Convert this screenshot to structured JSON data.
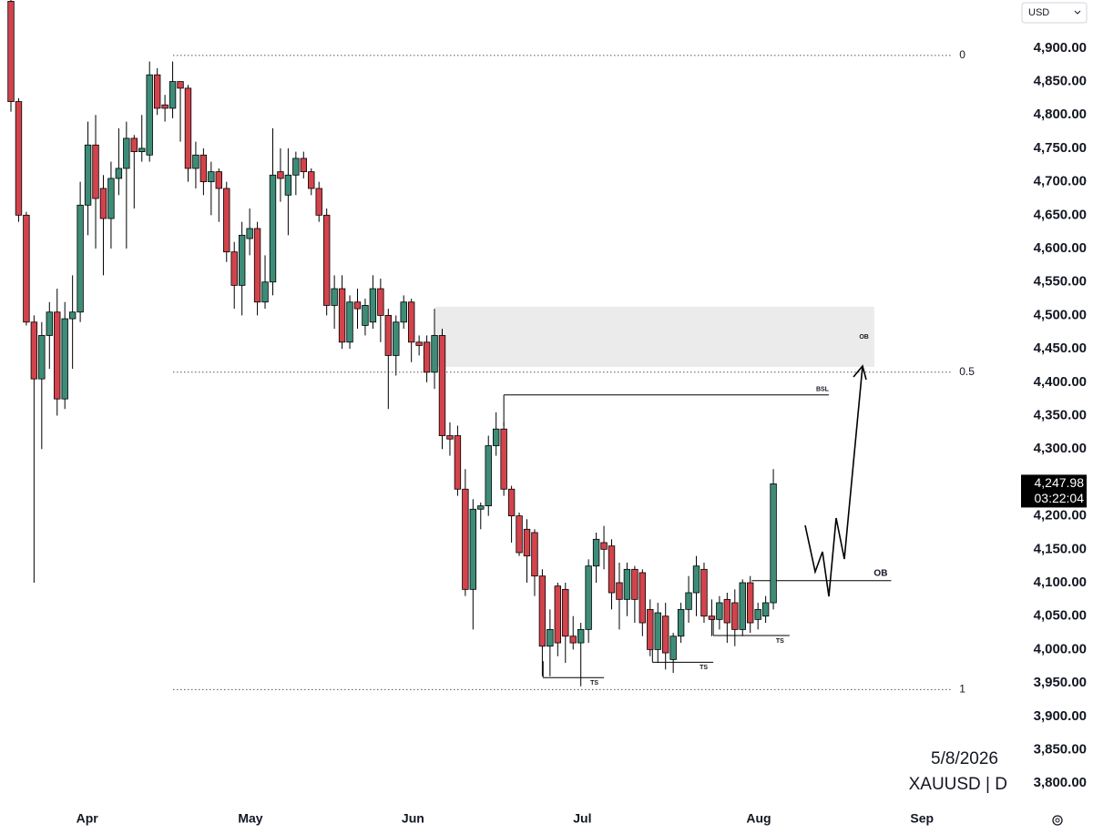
{
  "chart_data": {
    "type": "candlestick",
    "currency": "USD",
    "date": "5/8/2026",
    "symbol": "XAUUSD | D",
    "up_color": "#3d8c77",
    "down_color": "#d2434c",
    "x": [
      0,
      1,
      2,
      3,
      4,
      5,
      6,
      7,
      8,
      9,
      10,
      11,
      12,
      13,
      14,
      15,
      16,
      17,
      18,
      19,
      20,
      21,
      22,
      23,
      24,
      25,
      26,
      27,
      28,
      29,
      30,
      31,
      32,
      33,
      34,
      35,
      36,
      37,
      38,
      39,
      40,
      41,
      42,
      43,
      44,
      45,
      46,
      47,
      48,
      49,
      50,
      51,
      52,
      53,
      54,
      55,
      56,
      57,
      58,
      59,
      60,
      61,
      62,
      63,
      64,
      65,
      66,
      67,
      68,
      69,
      70,
      71,
      72,
      73,
      74,
      75,
      76,
      77,
      78,
      79,
      80,
      81,
      82,
      83,
      84,
      85,
      86,
      87,
      88,
      89,
      90,
      91,
      92,
      93,
      94,
      95,
      96,
      97,
      98,
      99
    ],
    "open": [
      4970,
      4820,
      4650,
      4490,
      4405,
      4470,
      4505,
      4375,
      4495,
      4505,
      4665,
      4755,
      4690,
      4645,
      4705,
      4720,
      4765,
      4745,
      4740,
      4860,
      4815,
      4810,
      4850,
      4840,
      4720,
      4740,
      4700,
      4715,
      4690,
      4595,
      4545,
      4615,
      4630,
      4520,
      4550,
      4715,
      4680,
      4710,
      4735,
      4715,
      4690,
      4650,
      4515,
      4540,
      4460,
      4520,
      4485,
      4490,
      4540,
      4500,
      4440,
      4490,
      4520,
      4460,
      4460,
      4415,
      4470,
      4320,
      4320,
      4240,
      4090,
      4210,
      4215,
      4305,
      4330,
      4240,
      4200,
      4180,
      4175,
      4110,
      4005,
      4095,
      4090,
      4020,
      4010,
      4030,
      4125,
      4160,
      4155,
      4100,
      4075,
      4120,
      4115,
      4060,
      4000,
      4050,
      3985,
      4020,
      4060,
      4085,
      4120,
      4050,
      4045,
      4075,
      4070,
      4030,
      4100,
      4045,
      4050,
      4070
    ],
    "high": [
      4995,
      4825,
      4655,
      4500,
      4490,
      4520,
      4540,
      4520,
      4560,
      4700,
      4790,
      4800,
      4710,
      4730,
      4780,
      4790,
      4770,
      4800,
      4880,
      4870,
      4830,
      4880,
      4850,
      4845,
      4760,
      4750,
      4730,
      4720,
      4700,
      4610,
      4640,
      4660,
      4640,
      4590,
      4780,
      4750,
      4750,
      4745,
      4745,
      4720,
      4700,
      4660,
      4560,
      4560,
      4530,
      4540,
      4525,
      4560,
      4555,
      4510,
      4500,
      4530,
      4525,
      4470,
      4470,
      4510,
      4480,
      4340,
      4335,
      4270,
      4225,
      4220,
      4320,
      4355,
      4340,
      4245,
      4205,
      4195,
      4180,
      4120,
      4060,
      4100,
      4100,
      4050,
      4040,
      4135,
      4175,
      4185,
      4165,
      4130,
      4130,
      4125,
      4120,
      4075,
      4070,
      4070,
      4025,
      4070,
      4110,
      4140,
      4130,
      4075,
      4080,
      4085,
      4090,
      4105,
      4110,
      4070,
      4080,
      4270
    ],
    "low": [
      4805,
      4640,
      4485,
      4100,
      4300,
      4420,
      4350,
      4360,
      4420,
      4490,
      4620,
      4600,
      4560,
      4600,
      4680,
      4600,
      4660,
      4730,
      4730,
      4800,
      4790,
      4795,
      4760,
      4700,
      4690,
      4680,
      4650,
      4640,
      4580,
      4510,
      4500,
      4590,
      4500,
      4510,
      4530,
      4670,
      4620,
      4680,
      4705,
      4680,
      4640,
      4500,
      4480,
      4450,
      4450,
      4480,
      4470,
      4480,
      4460,
      4360,
      4410,
      4480,
      4430,
      4440,
      4400,
      4390,
      4300,
      4290,
      4230,
      4080,
      4030,
      4180,
      4200,
      4290,
      4230,
      4160,
      4140,
      4100,
      4080,
      3960,
      3960,
      3990,
      3980,
      4000,
      3945,
      4010,
      4100,
      4120,
      4060,
      4030,
      4050,
      4040,
      4020,
      3990,
      3980,
      3970,
      3965,
      4010,
      4040,
      4050,
      4040,
      4020,
      4030,
      4010,
      4005,
      4020,
      4025,
      4030,
      4040,
      4060
    ],
    "close": [
      4820,
      4650,
      4490,
      4405,
      4470,
      4505,
      4375,
      4495,
      4505,
      4665,
      4755,
      4675,
      4645,
      4705,
      4720,
      4765,
      4745,
      4750,
      4860,
      4810,
      4810,
      4850,
      4840,
      4720,
      4740,
      4700,
      4715,
      4690,
      4595,
      4545,
      4620,
      4630,
      4520,
      4550,
      4710,
      4705,
      4710,
      4735,
      4715,
      4690,
      4650,
      4515,
      4540,
      4460,
      4520,
      4510,
      4515,
      4540,
      4500,
      4440,
      4490,
      4520,
      4460,
      4455,
      4415,
      4470,
      4320,
      4315,
      4240,
      4090,
      4210,
      4215,
      4305,
      4330,
      4240,
      4200,
      4145,
      4140,
      4110,
      4005,
      4030,
      4010,
      4020,
      4010,
      4030,
      4125,
      4165,
      4150,
      4085,
      4075,
      4120,
      4075,
      4040,
      4000,
      4055,
      3995,
      4020,
      4060,
      4085,
      4125,
      4050,
      4045,
      4070,
      4040,
      4030,
      4100,
      4040,
      4060,
      4070,
      4247.98
    ],
    "last_price": {
      "value": 4247.98,
      "label": "4,247.98"
    },
    "countdown": "03:22:04",
    "xlim": [
      -1.42,
      129.86
    ],
    "xticks": [
      {
        "value": 9.9,
        "label": "Apr"
      },
      {
        "value": 31.1,
        "label": "May"
      },
      {
        "value": 52.2,
        "label": "Jun"
      },
      {
        "value": 74.2,
        "label": "Jul"
      },
      {
        "value": 97.1,
        "label": "Aug"
      },
      {
        "value": 118.3,
        "label": "Sep"
      }
    ],
    "ylim": [
      3773,
      4972
    ],
    "yticks": [
      {
        "value": 3800,
        "label": "3,800.00"
      },
      {
        "value": 3850,
        "label": "3,850.00"
      },
      {
        "value": 3900,
        "label": "3,900.00"
      },
      {
        "value": 3950,
        "label": "3,950.00"
      },
      {
        "value": 4000,
        "label": "4,000.00"
      },
      {
        "value": 4050,
        "label": "4,050.00"
      },
      {
        "value": 4100,
        "label": "4,100.00"
      },
      {
        "value": 4150,
        "label": "4,150.00"
      },
      {
        "value": 4200,
        "label": "4,200.00"
      },
      {
        "value": 4250,
        "label": "4,250.00"
      },
      {
        "value": 4300,
        "label": "4,300.00"
      },
      {
        "value": 4350,
        "label": "4,350.00"
      },
      {
        "value": 4400,
        "label": "4,400.00"
      },
      {
        "value": 4450,
        "label": "4,450.00"
      },
      {
        "value": 4500,
        "label": "4,500.00"
      },
      {
        "value": 4550,
        "label": "4,550.00"
      },
      {
        "value": 4600,
        "label": "4,600.00"
      },
      {
        "value": 4650,
        "label": "4,650.00"
      },
      {
        "value": 4700,
        "label": "4,700.00"
      },
      {
        "value": 4750,
        "label": "4,750.00"
      },
      {
        "value": 4800,
        "label": "4,800.00"
      },
      {
        "value": 4850,
        "label": "4,850.00"
      },
      {
        "value": 4900,
        "label": "4,900.00"
      }
    ],
    "annotations": {
      "fib_from_x": 21.05,
      "fib_to_x": 122.2,
      "fib_levels": [
        {
          "ratio": 0,
          "price": 4889
        },
        {
          "ratio": 0.5,
          "price": 4415
        },
        {
          "ratio": 1,
          "price": 3940
        }
      ],
      "ob_zone": {
        "label": "OB",
        "x": [
          55.1,
          112.1
        ],
        "price": [
          4423,
          4513
        ]
      },
      "bsl": {
        "label": "BSL",
        "x": [
          64.0,
          106.2
        ],
        "price": 4381
      },
      "ob_line": {
        "label": "OB",
        "x": [
          96.2,
          114.3
        ],
        "price": 4103
      },
      "ts": [
        {
          "label": "TS",
          "x": [
            69.1,
            77.0
          ],
          "price": 3958
        },
        {
          "label": "TS",
          "x": [
            83.3,
            91.2
          ],
          "price": 3981
        },
        {
          "label": "TS",
          "x": [
            91.2,
            101.1
          ],
          "price": 4021
        }
      ]
    }
  }
}
